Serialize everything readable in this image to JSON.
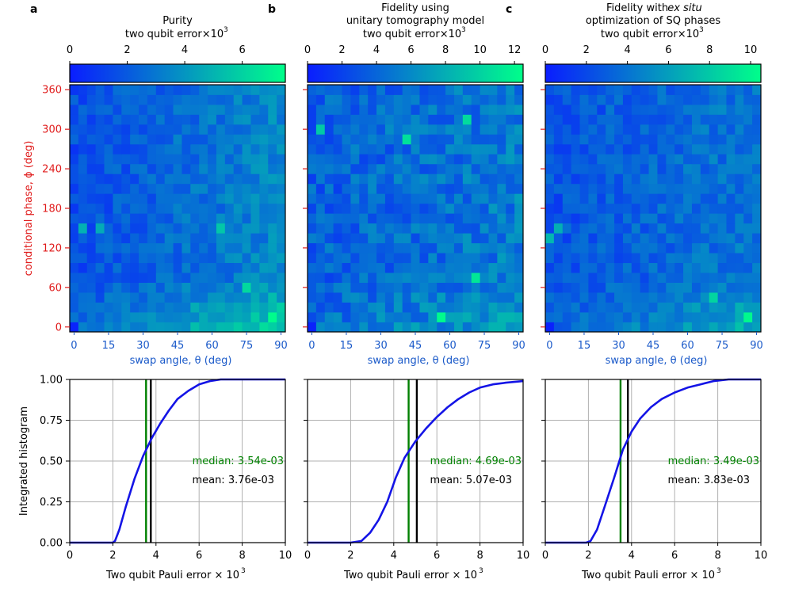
{
  "figure": {
    "grid_size": 25,
    "colormap": {
      "low": "#0a1dff",
      "high": "#00ff8a"
    },
    "colors": {
      "red_axis": "#e01c1c",
      "blue_axis": "#1b5ac9",
      "curve": "#1414e6",
      "median": "#008000",
      "mean": "#000000",
      "grid": "#b0b0b0"
    }
  },
  "chart_data": [
    {
      "panel": "a",
      "type": "heatmap",
      "title_lines": [
        "Purity",
        "two qubit error×10",
        "3"
      ],
      "colorbar": {
        "min": 0,
        "max": 7.5,
        "ticks": [
          0,
          2,
          4,
          6
        ],
        "tick_labels": [
          "0",
          "2",
          "4",
          "6"
        ]
      },
      "xlabel": "swap angle, θ (deg)",
      "ylabel": "conditional phase, ϕ (deg)",
      "x_ticks": [
        0,
        15,
        30,
        45,
        60,
        75,
        90
      ],
      "y_ticks": [
        0,
        60,
        120,
        180,
        240,
        300,
        360
      ],
      "x_range": [
        -1.875,
        91.875
      ],
      "y_range": [
        -7.5,
        367.5
      ],
      "matrix_description": "estimated 25x25 grid of error values; higher near θ≈60–90° and ϕ≈0–40°",
      "seed": 17,
      "base": 1.6,
      "x_trend": 1.9,
      "low_phi_boost": 2.6,
      "noise": 0.9,
      "hotspots": [
        {
          "ix": 0,
          "iy": 0,
          "v": 0.2
        },
        {
          "ix": 1,
          "iy": 10,
          "v": 4.9
        },
        {
          "ix": 3,
          "iy": 10,
          "v": 4.7
        },
        {
          "ix": 23,
          "iy": 1,
          "v": 7.4
        },
        {
          "ix": 17,
          "iy": 10,
          "v": 5.6
        },
        {
          "ix": 20,
          "iy": 4,
          "v": 6.2
        }
      ]
    },
    {
      "panel": "b",
      "type": "heatmap",
      "title_lines": [
        "Fidelity using",
        "unitary tomography model",
        "two qubit error×10",
        "3"
      ],
      "colorbar": {
        "min": 0,
        "max": 12.5,
        "ticks": [
          0,
          2,
          4,
          6,
          8,
          10,
          12
        ],
        "tick_labels": [
          "0",
          "2",
          "4",
          "6",
          "8",
          "10",
          "12"
        ]
      },
      "xlabel": "swap angle, θ (deg)",
      "x_ticks": [
        0,
        15,
        30,
        45,
        60,
        75,
        90
      ],
      "x_range": [
        -1.875,
        91.875
      ],
      "y_range": [
        -7.5,
        367.5
      ],
      "matrix_description": "estimated 25x25 grid of error values; mostly 3–6, scattered bright cells",
      "seed": 29,
      "base": 3.6,
      "x_trend": 1.6,
      "low_phi_boost": 2.0,
      "noise": 2.0,
      "hotspots": [
        {
          "ix": 0,
          "iy": 0,
          "v": 0.3
        },
        {
          "ix": 15,
          "iy": 1,
          "v": 12.2
        },
        {
          "ix": 19,
          "iy": 5,
          "v": 11.2
        },
        {
          "ix": 18,
          "iy": 21,
          "v": 10.5
        },
        {
          "ix": 1,
          "iy": 20,
          "v": 9.5
        },
        {
          "ix": 11,
          "iy": 19,
          "v": 10.8
        }
      ]
    },
    {
      "panel": "c",
      "type": "heatmap",
      "title_lines": [
        "Fidelity with ",
        "ex situ",
        "optimization of SQ phases",
        "two qubit error×10",
        "3"
      ],
      "colorbar": {
        "min": 0,
        "max": 10.5,
        "ticks": [
          0,
          2,
          4,
          6,
          8,
          10
        ],
        "tick_labels": [
          "0",
          "2",
          "4",
          "6",
          "8",
          "10"
        ]
      },
      "xlabel": "swap angle, θ (deg)",
      "x_ticks": [
        0,
        15,
        30,
        45,
        60,
        75,
        90
      ],
      "x_range": [
        -1.875,
        91.875
      ],
      "y_range": [
        -7.5,
        367.5
      ],
      "matrix_description": "estimated 25x25 grid of error values; higher near θ≈60–90° and ϕ≈0–40°",
      "seed": 53,
      "base": 2.4,
      "x_trend": 1.8,
      "low_phi_boost": 2.6,
      "noise": 1.3,
      "hotspots": [
        {
          "ix": 0,
          "iy": 0,
          "v": 0.2
        },
        {
          "ix": 1,
          "iy": 10,
          "v": 6.8
        },
        {
          "ix": 23,
          "iy": 1,
          "v": 10.2
        },
        {
          "ix": 0,
          "iy": 9,
          "v": 7.2
        },
        {
          "ix": 19,
          "iy": 3,
          "v": 8.5
        }
      ]
    },
    {
      "panel": "a",
      "type": "line",
      "xlabel": "Two qubit Pauli error × 10",
      "xlabel_sup": "3",
      "ylabel": "Integrated histogram",
      "xlim": [
        0,
        10
      ],
      "ylim": [
        0,
        1
      ],
      "x_ticks": [
        0,
        2,
        4,
        6,
        8,
        10
      ],
      "y_ticks": [
        0,
        0.25,
        0.5,
        0.75,
        1
      ],
      "y_tick_labels": [
        "0.00",
        "0.25",
        "0.50",
        "0.75",
        "1.00"
      ],
      "x": [
        0,
        1,
        2,
        2.1,
        2.3,
        2.6,
        3.0,
        3.4,
        3.8,
        4.2,
        4.6,
        5.0,
        5.5,
        6.0,
        6.5,
        7.0,
        7.6,
        10
      ],
      "y": [
        0,
        0,
        0,
        0.01,
        0.08,
        0.22,
        0.39,
        0.53,
        0.64,
        0.73,
        0.81,
        0.88,
        0.93,
        0.97,
        0.99,
        1.0,
        1.0,
        1.0
      ],
      "median": 3.54,
      "mean": 3.76,
      "median_text": "median: 3.54e-03",
      "mean_text": "mean: 3.76e-03"
    },
    {
      "panel": "b",
      "type": "line",
      "xlabel": "Two qubit Pauli error × 10",
      "xlabel_sup": "3",
      "xlim": [
        0,
        10
      ],
      "ylim": [
        0,
        1
      ],
      "x_ticks": [
        0,
        2,
        4,
        6,
        8,
        10
      ],
      "x": [
        0,
        1,
        2,
        2.5,
        2.9,
        3.3,
        3.7,
        4.1,
        4.5,
        5.0,
        5.5,
        6.0,
        6.5,
        7.0,
        7.5,
        8.0,
        8.6,
        9.2,
        10
      ],
      "y": [
        0,
        0,
        0,
        0.01,
        0.06,
        0.14,
        0.25,
        0.4,
        0.52,
        0.62,
        0.7,
        0.77,
        0.83,
        0.88,
        0.92,
        0.95,
        0.97,
        0.98,
        0.99
      ],
      "median": 4.69,
      "mean": 5.07,
      "median_text": "median: 4.69e-03",
      "mean_text": "mean: 5.07e-03"
    },
    {
      "panel": "c",
      "type": "line",
      "xlabel": "Two qubit Pauli error × 10",
      "xlabel_sup": "3",
      "xlim": [
        0,
        10
      ],
      "ylim": [
        0,
        1
      ],
      "x_ticks": [
        0,
        2,
        4,
        6,
        8,
        10
      ],
      "x": [
        0,
        1,
        1.9,
        2.1,
        2.4,
        2.8,
        3.2,
        3.6,
        4.0,
        4.4,
        4.9,
        5.4,
        6.0,
        6.6,
        7.2,
        7.8,
        8.5,
        10
      ],
      "y": [
        0,
        0,
        0,
        0.01,
        0.08,
        0.24,
        0.4,
        0.57,
        0.68,
        0.76,
        0.83,
        0.88,
        0.92,
        0.95,
        0.97,
        0.99,
        1.0,
        1.0
      ],
      "median": 3.49,
      "mean": 3.83,
      "median_text": "median: 3.49e-03",
      "mean_text": "mean: 3.83e-03"
    }
  ]
}
